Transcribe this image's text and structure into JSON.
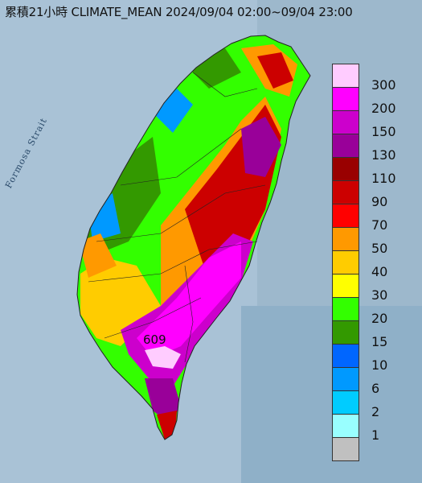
{
  "title": "累積21小時 CLIMATE_MEAN 2024/09/04 02:00~09/04 23:00",
  "sea_label": "Formosa Strait",
  "max_value_label": "609",
  "legend": {
    "labels": [
      "300",
      "200",
      "150",
      "130",
      "110",
      "90",
      "70",
      "50",
      "40",
      "30",
      "20",
      "15",
      "10",
      "6",
      "2",
      "1"
    ],
    "colors": [
      "#ffccff",
      "#ff00ff",
      "#cc00cc",
      "#990099",
      "#990000",
      "#cc0000",
      "#ff0000",
      "#ff9900",
      "#ffcc00",
      "#ffff00",
      "#33ff00",
      "#339900",
      "#0066ff",
      "#0099ff",
      "#00ccff",
      "#99ffff",
      "#c0c0c0"
    ]
  }
}
